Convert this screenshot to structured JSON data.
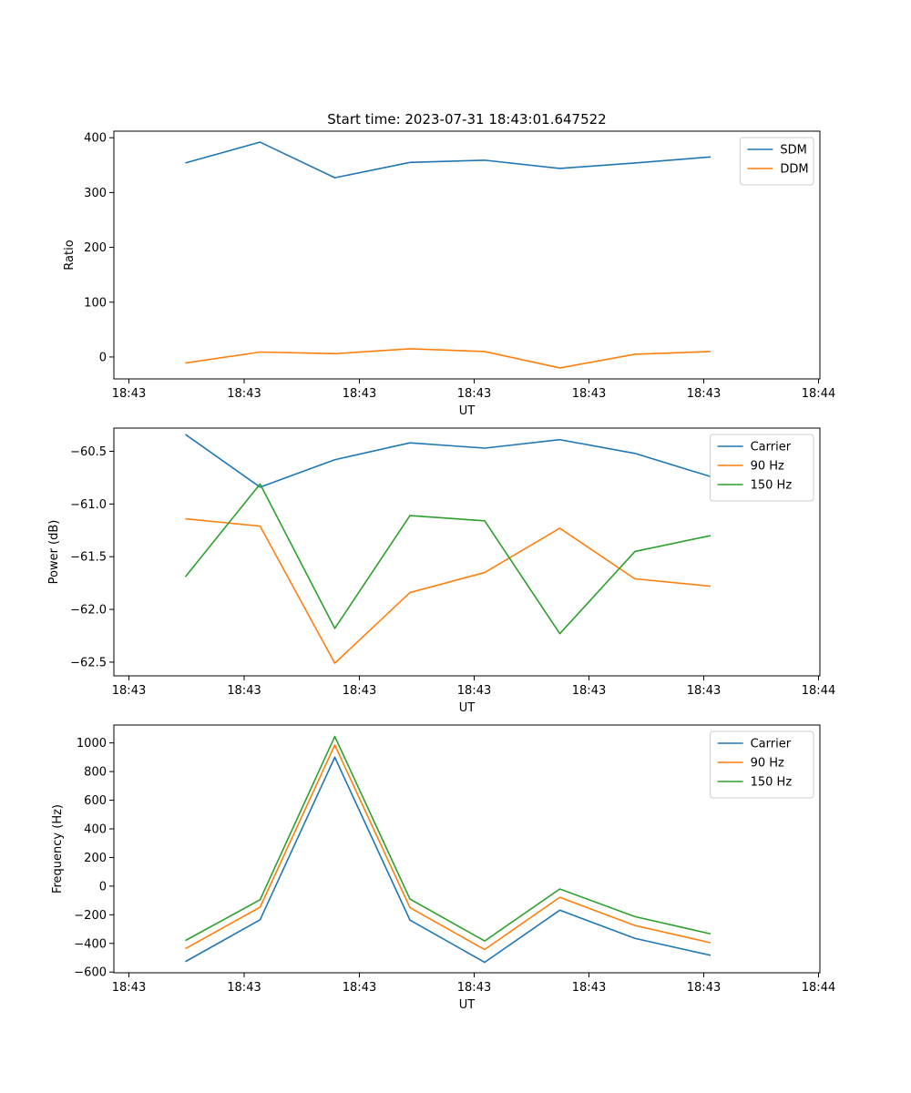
{
  "figure_title": "Start time: 2023-07-31 18:43:01.647522",
  "colors": {
    "blue": "#1f77b4",
    "orange": "#ff7f0e",
    "green": "#2ca02c"
  },
  "chart_data": [
    {
      "type": "line",
      "title": "Start time: 2023-07-31 18:43:01.647522",
      "xlabel": "UT",
      "ylabel": "Ratio",
      "x_tick_labels": [
        "18:43",
        "18:43",
        "18:43",
        "18:43",
        "18:43",
        "18:43",
        "18:44"
      ],
      "x": [
        0,
        1,
        2,
        3,
        4,
        5,
        6,
        7
      ],
      "ylim": [
        -40,
        412
      ],
      "y_ticks": [
        0,
        100,
        200,
        300,
        400
      ],
      "y_tick_labels": [
        "0",
        "100",
        "200",
        "300",
        "400"
      ],
      "legend": "top-right",
      "series": [
        {
          "name": "SDM",
          "color": "#1f77b4",
          "values": [
            354,
            392,
            327,
            355,
            359,
            344,
            354,
            365
          ]
        },
        {
          "name": "DDM",
          "color": "#ff7f0e",
          "values": [
            -11,
            9,
            6,
            15,
            10,
            -20,
            5,
            10
          ]
        }
      ]
    },
    {
      "type": "line",
      "title": "",
      "xlabel": "UT",
      "ylabel": "Power (dB)",
      "x_tick_labels": [
        "18:43",
        "18:43",
        "18:43",
        "18:43",
        "18:43",
        "18:43",
        "18:44"
      ],
      "x": [
        0,
        1,
        2,
        3,
        4,
        5,
        6,
        7
      ],
      "ylim": [
        -62.63,
        -60.28
      ],
      "y_ticks": [
        -62.5,
        -62.0,
        -61.5,
        -61.0,
        -60.5
      ],
      "y_tick_labels": [
        "−62.5",
        "−62.0",
        "−61.5",
        "−61.0",
        "−60.5"
      ],
      "legend": "top-right",
      "series": [
        {
          "name": "Carrier",
          "color": "#1f77b4",
          "values": [
            -60.34,
            -60.84,
            -60.58,
            -60.42,
            -60.47,
            -60.39,
            -60.52,
            -60.74
          ]
        },
        {
          "name": "90 Hz",
          "color": "#ff7f0e",
          "values": [
            -61.14,
            -61.21,
            -62.51,
            -61.84,
            -61.65,
            -61.23,
            -61.71,
            -61.78
          ]
        },
        {
          "name": "150 Hz",
          "color": "#2ca02c",
          "values": [
            -61.69,
            -60.81,
            -62.18,
            -61.11,
            -61.16,
            -62.23,
            -61.45,
            -61.3
          ]
        }
      ]
    },
    {
      "type": "line",
      "title": "",
      "xlabel": "UT",
      "ylabel": "Frequency (Hz)",
      "x_tick_labels": [
        "18:43",
        "18:43",
        "18:43",
        "18:43",
        "18:43",
        "18:43",
        "18:44"
      ],
      "x": [
        0,
        1,
        2,
        3,
        4,
        5,
        6,
        7
      ],
      "ylim": [
        -605,
        1125
      ],
      "y_ticks": [
        -600,
        -400,
        -200,
        0,
        200,
        400,
        600,
        800,
        1000
      ],
      "y_tick_labels": [
        "−600",
        "−400",
        "−200",
        "0",
        "200",
        "400",
        "600",
        "800",
        "1000"
      ],
      "legend": "top-right",
      "series": [
        {
          "name": "Carrier",
          "color": "#1f77b4",
          "values": [
            -527,
            -235,
            900,
            -237,
            -532,
            -168,
            -365,
            -483
          ]
        },
        {
          "name": "90 Hz",
          "color": "#ff7f0e",
          "values": [
            -437,
            -147,
            985,
            -150,
            -443,
            -78,
            -275,
            -395
          ]
        },
        {
          "name": "150 Hz",
          "color": "#2ca02c",
          "values": [
            -380,
            -95,
            1045,
            -90,
            -383,
            -20,
            -213,
            -333
          ]
        }
      ]
    }
  ]
}
